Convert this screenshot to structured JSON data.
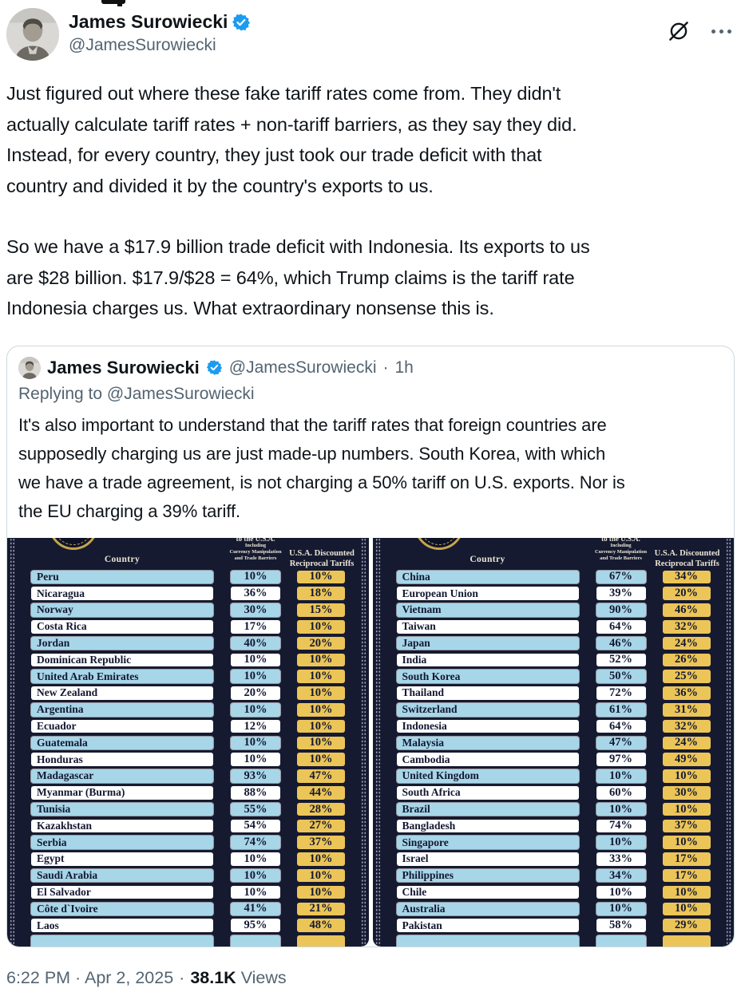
{
  "colors": {
    "accent_blue": "#1d9bf0",
    "text_primary": "#0f1419",
    "text_secondary": "#536471",
    "card_border": "#cfd9de",
    "poster_navy": "#161a30",
    "poster_row_blue": "#a7d6e8",
    "poster_gold": "#ecc558",
    "poster_header_cream": "#e9e5d6"
  },
  "icons": {
    "verified": "verified-badge-icon",
    "grok": "grok-slash-icon",
    "more": "more-ellipsis-icon"
  },
  "tweet": {
    "author": {
      "name": "James Surowiecki",
      "handle": "@JamesSurowiecki"
    },
    "paragraphs": [
      [
        "Just figured out where these fake tariff rates come from. They didn't",
        "actually calculate tariff rates + non-tariff barriers, as they say they did.",
        "Instead, for every country, they just took our trade deficit with that",
        "country and divided it by the country's exports to us."
      ],
      [
        "So we have a $17.9 billion trade deficit with Indonesia. Its exports to us",
        "are $28 billion. $17.9/$28 = 64%, which Trump claims is the tariff rate",
        "Indonesia charges us. What extraordinary nonsense this is."
      ]
    ],
    "footer": {
      "datetime": "6:22 PM · Apr 2, 2025",
      "separator": "·",
      "views_count": "38.1K",
      "views_label": "Views"
    }
  },
  "quoted_tweet": {
    "author": {
      "name": "James Surowiecki",
      "handle": "@JamesSurowiecki",
      "separator": "·",
      "timestamp": "1h"
    },
    "replying_to": "Replying to @JamesSurowiecki",
    "text_lines": [
      "It's also important to understand that the tariff rates that foreign countries are",
      "supposedly charging us are just made-up numbers. South Korea, with which",
      "we have a trade agreement, is not charging a 50% tariff on U.S. exports. Nor is",
      "the EU charging a 39% tariff."
    ]
  },
  "chart_data": [
    {
      "type": "table",
      "header": {
        "country": "Country",
        "charged_top": "to the U.S.A.",
        "charged_lines": [
          "Including",
          "Currency Manipulation",
          "and Trade Barriers"
        ],
        "discounted_lines": [
          "U.S.A. Discounted",
          "Reciprocal Tariffs"
        ]
      },
      "rows": [
        [
          "Peru",
          "10%",
          "10%"
        ],
        [
          "Nicaragua",
          "36%",
          "18%"
        ],
        [
          "Norway",
          "30%",
          "15%"
        ],
        [
          "Costa Rica",
          "17%",
          "10%"
        ],
        [
          "Jordan",
          "40%",
          "20%"
        ],
        [
          "Dominican Republic",
          "10%",
          "10%"
        ],
        [
          "United Arab Emirates",
          "10%",
          "10%"
        ],
        [
          "New Zealand",
          "20%",
          "10%"
        ],
        [
          "Argentina",
          "10%",
          "10%"
        ],
        [
          "Ecuador",
          "12%",
          "10%"
        ],
        [
          "Guatemala",
          "10%",
          "10%"
        ],
        [
          "Honduras",
          "10%",
          "10%"
        ],
        [
          "Madagascar",
          "93%",
          "47%"
        ],
        [
          "Myanmar (Burma)",
          "88%",
          "44%"
        ],
        [
          "Tunisia",
          "55%",
          "28%"
        ],
        [
          "Kazakhstan",
          "54%",
          "27%"
        ],
        [
          "Serbia",
          "74%",
          "37%"
        ],
        [
          "Egypt",
          "10%",
          "10%"
        ],
        [
          "Saudi Arabia",
          "10%",
          "10%"
        ],
        [
          "El Salvador",
          "10%",
          "10%"
        ],
        [
          "Côte d`Ivoire",
          "41%",
          "21%"
        ],
        [
          "Laos",
          "95%",
          "48%"
        ]
      ]
    },
    {
      "type": "table",
      "header": {
        "country": "Country",
        "charged_top": "to the U.S.A.",
        "charged_lines": [
          "Including",
          "Currency Manipulation",
          "and Trade Barriers"
        ],
        "discounted_lines": [
          "U.S.A. Discounted",
          "Reciprocal Tariffs"
        ]
      },
      "rows": [
        [
          "China",
          "67%",
          "34%"
        ],
        [
          "European Union",
          "39%",
          "20%"
        ],
        [
          "Vietnam",
          "90%",
          "46%"
        ],
        [
          "Taiwan",
          "64%",
          "32%"
        ],
        [
          "Japan",
          "46%",
          "24%"
        ],
        [
          "India",
          "52%",
          "26%"
        ],
        [
          "South Korea",
          "50%",
          "25%"
        ],
        [
          "Thailand",
          "72%",
          "36%"
        ],
        [
          "Switzerland",
          "61%",
          "31%"
        ],
        [
          "Indonesia",
          "64%",
          "32%"
        ],
        [
          "Malaysia",
          "47%",
          "24%"
        ],
        [
          "Cambodia",
          "97%",
          "49%"
        ],
        [
          "United Kingdom",
          "10%",
          "10%"
        ],
        [
          "South Africa",
          "60%",
          "30%"
        ],
        [
          "Brazil",
          "10%",
          "10%"
        ],
        [
          "Bangladesh",
          "74%",
          "37%"
        ],
        [
          "Singapore",
          "10%",
          "10%"
        ],
        [
          "Israel",
          "33%",
          "17%"
        ],
        [
          "Philippines",
          "34%",
          "17%"
        ],
        [
          "Chile",
          "10%",
          "10%"
        ],
        [
          "Australia",
          "10%",
          "10%"
        ],
        [
          "Pakistan",
          "58%",
          "29%"
        ]
      ]
    }
  ]
}
